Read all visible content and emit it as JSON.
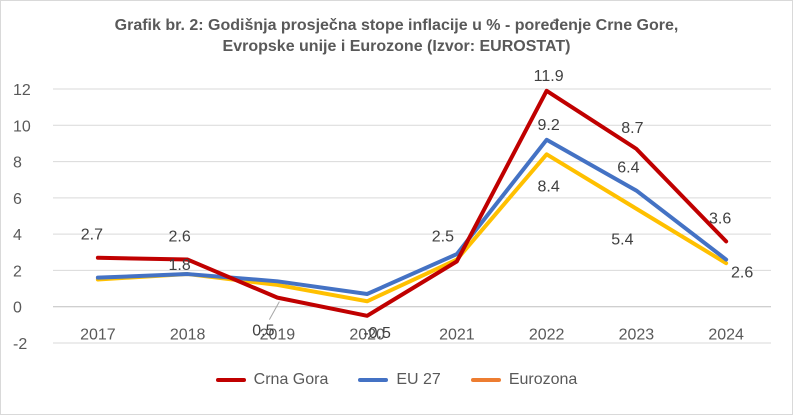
{
  "chart_data": {
    "type": "line",
    "title_lines": [
      "Grafik br. 2: Godišnja prosječna stope inflacije u % - poređenje Crne Gore,",
      "Evropske unije i Eurozone (Izvor: EUROSTAT)"
    ],
    "categories": [
      "2017",
      "2018",
      "2019",
      "2020",
      "2021",
      "2022",
      "2023",
      "2024"
    ],
    "ylim": [
      -2,
      12
    ],
    "yticks": [
      12,
      10,
      8,
      6,
      4,
      2,
      0,
      -2
    ],
    "grid": "horizontal",
    "legend_position": "bottom",
    "series": [
      {
        "name": "Crna Gora",
        "color": "#c00000",
        "values": [
          2.7,
          2.6,
          0.5,
          -0.5,
          2.5,
          11.9,
          8.7,
          3.6
        ],
        "labels": [
          "2.7",
          "2.6",
          "0.5",
          "-0.5",
          "2.5",
          "11.9",
          "8.7",
          "3.6"
        ]
      },
      {
        "name": "EU 27",
        "color": "#4472c4",
        "values": [
          1.6,
          1.8,
          1.4,
          0.7,
          2.9,
          9.2,
          6.4,
          2.6
        ],
        "labels": [
          "",
          "1.8",
          "",
          "",
          "",
          "9.2",
          "6.4",
          "2.6"
        ]
      },
      {
        "name": "Eurozona",
        "color": "#ed7d31",
        "line_color": "#ffc000",
        "values": [
          1.5,
          1.8,
          1.2,
          0.3,
          2.6,
          8.4,
          5.4,
          2.4
        ],
        "labels": [
          "",
          "",
          "",
          "",
          "",
          "8.4",
          "5.4",
          ""
        ]
      }
    ]
  }
}
